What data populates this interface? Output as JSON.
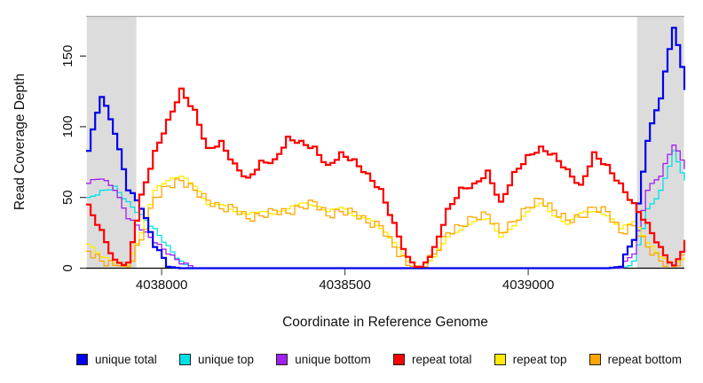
{
  "figure": {
    "xlabel": "Coordinate in Reference Genome",
    "ylabel": "Read Coverage Depth"
  },
  "chart_data": {
    "type": "line",
    "title": "",
    "xlabel": "Coordinate in Reference Genome",
    "ylabel": "Read Coverage Depth",
    "xlim": [
      4037794,
      4039426
    ],
    "ylim": [
      0,
      178
    ],
    "x_ticks": [
      4038000,
      4038500,
      4039000
    ],
    "y_ticks": [
      0,
      50,
      100,
      150
    ],
    "grid": false,
    "legend_position": "bottom",
    "background_color": "#ffffff",
    "shaded_region_color": "#dcdcdc",
    "axis_color": "#333333",
    "frame_color": "#ababab",
    "shaded_regions": [
      {
        "x0": 4037796,
        "x1": 4037931
      },
      {
        "x0": 4039297,
        "x1": 4039425
      }
    ],
    "draw_order": [
      1,
      2,
      4,
      5,
      0,
      3
    ],
    "x": [
      4037794,
      4037831,
      4037867,
      4037903,
      4037939,
      4037976,
      4038012,
      4038048,
      4038085,
      4038121,
      4038157,
      4038194,
      4038230,
      4038266,
      4038303,
      4038339,
      4038375,
      4038412,
      4038448,
      4038484,
      4038520,
      4038557,
      4038593,
      4038629,
      4038666,
      4038702,
      4038738,
      4038775,
      4038811,
      4038847,
      4038884,
      4038920,
      4038956,
      4038993,
      4039029,
      4039065,
      4039102,
      4039138,
      4039174,
      4039211,
      4039247,
      4039283,
      4039320,
      4039356,
      4039392,
      4039426
    ],
    "series": [
      {
        "name": "unique total",
        "color": "#0000ee",
        "line_width": 2.2,
        "values": [
          83,
          121,
          95,
          55,
          42,
          15,
          1,
          0,
          0,
          0,
          0,
          0,
          0,
          0,
          0,
          0,
          0,
          0,
          0,
          0,
          0,
          0,
          0,
          0,
          0,
          0,
          0,
          0,
          0,
          0,
          0,
          0,
          0,
          0,
          0,
          0,
          0,
          0,
          0,
          0,
          1,
          20,
          90,
          120,
          170,
          126
        ]
      },
      {
        "name": "unique top",
        "color": "#00e0e6",
        "line_width": 1.3,
        "values": [
          50,
          55,
          58,
          47,
          38,
          28,
          16,
          5,
          0,
          0,
          0,
          0,
          0,
          0,
          0,
          0,
          0,
          0,
          0,
          0,
          0,
          0,
          0,
          0,
          0,
          0,
          0,
          0,
          0,
          0,
          0,
          0,
          0,
          0,
          0,
          0,
          0,
          0,
          0,
          0,
          0,
          5,
          42,
          55,
          83,
          62
        ]
      },
      {
        "name": "unique bottom",
        "color": "#a020f0",
        "line_width": 1.3,
        "values": [
          60,
          63,
          55,
          35,
          27,
          18,
          10,
          3,
          0,
          0,
          0,
          0,
          0,
          0,
          0,
          0,
          0,
          0,
          0,
          0,
          0,
          0,
          0,
          0,
          0,
          0,
          0,
          0,
          0,
          0,
          0,
          0,
          0,
          0,
          0,
          0,
          0,
          0,
          0,
          0,
          0,
          10,
          55,
          65,
          87,
          70
        ]
      },
      {
        "name": "repeat total",
        "color": "#ff0000",
        "line_width": 2.2,
        "values": [
          45,
          27,
          6,
          4,
          52,
          83,
          105,
          127,
          112,
          85,
          90,
          74,
          64,
          76,
          77,
          93,
          90,
          86,
          73,
          82,
          77,
          67,
          56,
          32,
          8,
          1,
          15,
          42,
          57,
          60,
          69,
          47,
          68,
          80,
          86,
          81,
          70,
          59,
          82,
          73,
          60,
          46,
          32,
          15,
          2,
          20
        ]
      },
      {
        "name": "repeat top",
        "color": "#ffeb00",
        "line_width": 1.3,
        "values": [
          17,
          8,
          4,
          2,
          25,
          55,
          62,
          65,
          58,
          45,
          45,
          40,
          38,
          40,
          38,
          42,
          46,
          44,
          40,
          43,
          37,
          35,
          28,
          18,
          5,
          0,
          8,
          22,
          27,
          33,
          35,
          22,
          30,
          40,
          46,
          37,
          31,
          39,
          40,
          37,
          28,
          33,
          18,
          8,
          2,
          8
        ]
      },
      {
        "name": "repeat bottom",
        "color": "#ffa500",
        "line_width": 1.3,
        "values": [
          12,
          5,
          2,
          1,
          20,
          50,
          58,
          62,
          55,
          48,
          42,
          43,
          35,
          37,
          41,
          39,
          43,
          47,
          37,
          40,
          40,
          32,
          30,
          15,
          2,
          0,
          10,
          25,
          30,
          36,
          38,
          25,
          33,
          43,
          49,
          41,
          34,
          36,
          43,
          40,
          25,
          30,
          15,
          5,
          1,
          10
        ]
      }
    ]
  }
}
